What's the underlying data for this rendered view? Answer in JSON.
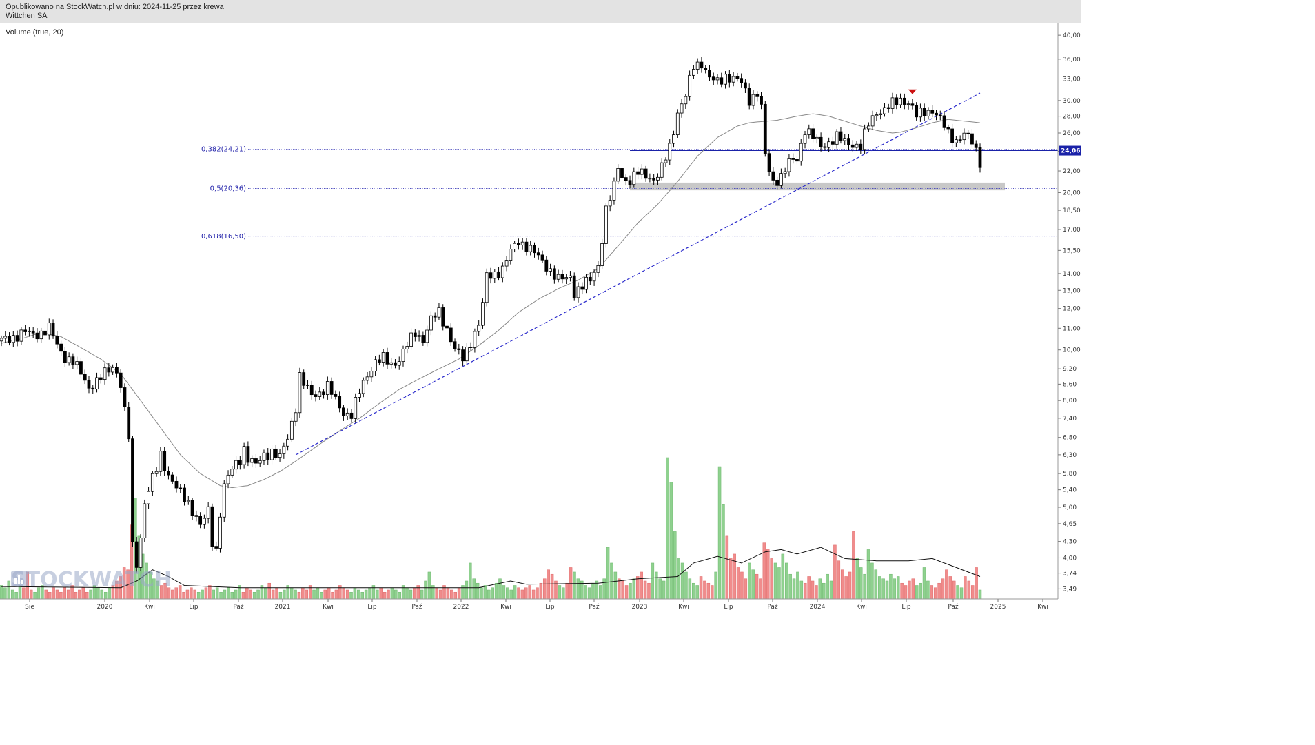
{
  "header": {
    "published": "Opublikowano na StockWatch.pl w dniu: 2024-11-25 przez krewa",
    "instrument": "Wittchen SA"
  },
  "indicator_label": "Volume (true, 20)",
  "watermark": "STOCKWATCH",
  "colors": {
    "up_volume": "#8fd18f",
    "down_volume": "#f08c8c",
    "fib_line": "#3a3ab8",
    "trendline": "#2c2ccc",
    "price_tag": "#1a22a8",
    "marker": "#cc1111",
    "support_zone": "#c8c8c8",
    "ma": "#888888"
  },
  "chart_data": {
    "type": "candlestick",
    "title": "Wittchen SA",
    "y_scale": "log",
    "ylim": [
      3.4,
      41.0
    ],
    "y_ticks": [
      "40,00",
      "36,00",
      "33,00",
      "30,00",
      "28,00",
      "26,00",
      "24,00",
      "22,00",
      "20,00",
      "18,50",
      "17,00",
      "15,50",
      "14,00",
      "13,00",
      "12,00",
      "11,00",
      "10,00",
      "9,20",
      "8,60",
      "8,00",
      "7,40",
      "6,80",
      "6,30",
      "5,80",
      "5,40",
      "5,00",
      "4,65",
      "4,30",
      "4,00",
      "3,74",
      "3,49"
    ],
    "x_ticks": [
      "Sie",
      "2020",
      "Kwi",
      "Lip",
      "Paź",
      "2021",
      "Kwi",
      "Lip",
      "Paź",
      "2022",
      "Kwi",
      "Lip",
      "Paź",
      "2023",
      "Kwi",
      "Lip",
      "Paź",
      "2024",
      "Kwi",
      "Lip",
      "Paź",
      "2025",
      "Kwi"
    ],
    "last_price": "24,06",
    "fibonacci_levels": [
      {
        "label": "0,382(24,21)",
        "value": 24.21
      },
      {
        "label": "0,5(20,36)",
        "value": 20.36
      },
      {
        "label": "0,618(16,50)",
        "value": 16.5
      }
    ],
    "support_zone": [
      20.2,
      20.9
    ],
    "price_path": [
      [
        0,
        10.4
      ],
      [
        3,
        10.6
      ],
      [
        6,
        10.8
      ],
      [
        8,
        10.7
      ],
      [
        10,
        10.8
      ],
      [
        12,
        11.0
      ],
      [
        13,
        10.6
      ],
      [
        14,
        10.2
      ],
      [
        16,
        9.7
      ],
      [
        18,
        9.5
      ],
      [
        20,
        9.0
      ],
      [
        22,
        8.5
      ],
      [
        24,
        8.7
      ],
      [
        26,
        9.0
      ],
      [
        28,
        9.3
      ],
      [
        29,
        9.1
      ],
      [
        30,
        8.6
      ],
      [
        31,
        7.6
      ],
      [
        32,
        6.8
      ],
      [
        33,
        4.2
      ],
      [
        34,
        3.9
      ],
      [
        35,
        4.4
      ],
      [
        36,
        5.1
      ],
      [
        37,
        5.4
      ],
      [
        39,
        5.9
      ],
      [
        40,
        6.3
      ],
      [
        41,
        6.0
      ],
      [
        43,
        5.6
      ],
      [
        45,
        5.3
      ],
      [
        47,
        5.1
      ],
      [
        49,
        4.8
      ],
      [
        50,
        4.6
      ],
      [
        52,
        4.9
      ],
      [
        53,
        4.3
      ],
      [
        54,
        4.15
      ],
      [
        55,
        4.9
      ],
      [
        56,
        5.5
      ],
      [
        58,
        5.9
      ],
      [
        60,
        6.2
      ],
      [
        61,
        6.5
      ],
      [
        62,
        6.2
      ],
      [
        64,
        6.0
      ],
      [
        66,
        6.3
      ],
      [
        68,
        6.4
      ],
      [
        70,
        6.2
      ],
      [
        72,
        6.8
      ],
      [
        74,
        7.8
      ],
      [
        75,
        8.9
      ],
      [
        76,
        8.6
      ],
      [
        78,
        8.2
      ],
      [
        80,
        8.3
      ],
      [
        82,
        8.5
      ],
      [
        84,
        8.0
      ],
      [
        86,
        7.6
      ],
      [
        88,
        7.5
      ],
      [
        90,
        8.3
      ],
      [
        92,
        9.0
      ],
      [
        94,
        9.5
      ],
      [
        96,
        9.6
      ],
      [
        98,
        9.4
      ],
      [
        100,
        9.6
      ],
      [
        102,
        10.2
      ],
      [
        104,
        10.8
      ],
      [
        106,
        10.5
      ],
      [
        108,
        11.4
      ],
      [
        110,
        11.8
      ],
      [
        112,
        11.0
      ],
      [
        114,
        10.0
      ],
      [
        116,
        9.6
      ],
      [
        118,
        10.4
      ],
      [
        120,
        11.2
      ],
      [
        121,
        12.2
      ],
      [
        122,
        13.8
      ],
      [
        124,
        14.0
      ],
      [
        126,
        14.3
      ],
      [
        128,
        15.4
      ],
      [
        130,
        16.2
      ],
      [
        132,
        15.8
      ],
      [
        134,
        15.3
      ],
      [
        136,
        14.8
      ],
      [
        138,
        14.2
      ],
      [
        140,
        13.6
      ],
      [
        142,
        13.7
      ],
      [
        143,
        13.9
      ],
      [
        144,
        12.9
      ],
      [
        146,
        13.2
      ],
      [
        148,
        13.6
      ],
      [
        150,
        14.6
      ],
      [
        151,
        16.3
      ],
      [
        152,
        18.5
      ],
      [
        154,
        20.5
      ],
      [
        155,
        22.5
      ],
      [
        156,
        21.5
      ],
      [
        158,
        21.0
      ],
      [
        160,
        21.8
      ],
      [
        162,
        21.7
      ],
      [
        164,
        21.2
      ],
      [
        165,
        21.5
      ],
      [
        166,
        22.2
      ],
      [
        168,
        24.5
      ],
      [
        170,
        28.5
      ],
      [
        172,
        30.5
      ],
      [
        174,
        35.0
      ],
      [
        176,
        35.5
      ],
      [
        178,
        33.0
      ],
      [
        180,
        32.5
      ],
      [
        182,
        33.5
      ],
      [
        184,
        33.0
      ],
      [
        186,
        32.4
      ],
      [
        188,
        30.2
      ],
      [
        190,
        31.0
      ],
      [
        191,
        29.0
      ],
      [
        192,
        23.5
      ],
      [
        193,
        22.0
      ],
      [
        194,
        21.0
      ],
      [
        196,
        21.5
      ],
      [
        198,
        22.8
      ],
      [
        200,
        23.2
      ],
      [
        202,
        26.5
      ],
      [
        204,
        25.5
      ],
      [
        206,
        24.5
      ],
      [
        208,
        25.0
      ],
      [
        210,
        25.5
      ],
      [
        212,
        25.0
      ],
      [
        214,
        24.8
      ],
      [
        216,
        24.5
      ],
      [
        218,
        27.0
      ],
      [
        220,
        28.6
      ],
      [
        222,
        28.8
      ],
      [
        224,
        29.5
      ],
      [
        226,
        30.2
      ],
      [
        228,
        29.8
      ],
      [
        230,
        28.0
      ],
      [
        232,
        28.6
      ],
      [
        234,
        28.8
      ],
      [
        236,
        27.5
      ],
      [
        238,
        26.0
      ],
      [
        240,
        25.2
      ],
      [
        242,
        25.8
      ],
      [
        244,
        25.0
      ],
      [
        245,
        24.1
      ],
      [
        246,
        23.0
      ]
    ],
    "moving_average_path": [
      [
        0,
        10.3
      ],
      [
        5,
        10.5
      ],
      [
        10,
        10.8
      ],
      [
        15,
        10.6
      ],
      [
        20,
        10.1
      ],
      [
        25,
        9.6
      ],
      [
        30,
        9.0
      ],
      [
        35,
        8.0
      ],
      [
        40,
        7.1
      ],
      [
        45,
        6.3
      ],
      [
        50,
        5.8
      ],
      [
        55,
        5.5
      ],
      [
        58,
        5.45
      ],
      [
        62,
        5.5
      ],
      [
        66,
        5.65
      ],
      [
        70,
        5.85
      ],
      [
        75,
        6.2
      ],
      [
        80,
        6.6
      ],
      [
        85,
        7.0
      ],
      [
        90,
        7.4
      ],
      [
        95,
        7.9
      ],
      [
        100,
        8.4
      ],
      [
        105,
        8.8
      ],
      [
        110,
        9.2
      ],
      [
        115,
        9.6
      ],
      [
        120,
        10.2
      ],
      [
        125,
        10.9
      ],
      [
        130,
        11.8
      ],
      [
        135,
        12.5
      ],
      [
        140,
        13.1
      ],
      [
        145,
        13.6
      ],
      [
        150,
        14.3
      ],
      [
        155,
        15.8
      ],
      [
        160,
        17.5
      ],
      [
        165,
        19.0
      ],
      [
        170,
        21.0
      ],
      [
        175,
        23.5
      ],
      [
        180,
        25.5
      ],
      [
        185,
        26.8
      ],
      [
        188,
        27.2
      ],
      [
        190,
        27.3
      ],
      [
        195,
        27.5
      ],
      [
        200,
        28.0
      ],
      [
        204,
        28.3
      ],
      [
        208,
        28.0
      ],
      [
        212,
        27.4
      ],
      [
        216,
        26.8
      ],
      [
        220,
        26.3
      ],
      [
        224,
        26.0
      ],
      [
        226,
        26.1
      ],
      [
        230,
        26.6
      ],
      [
        234,
        27.2
      ],
      [
        238,
        27.6
      ],
      [
        242,
        27.4
      ],
      [
        246,
        27.2
      ]
    ],
    "trendline": {
      "from": [
        74,
        6.3
      ],
      "to": [
        246,
        31.0
      ]
    },
    "volume": {
      "scale_max": 6.3,
      "bars": [
        0.6,
        0.5,
        0.8,
        0.4,
        0.3,
        0.6,
        0.5,
        1.2,
        0.4,
        0.3,
        0.5,
        0.6,
        0.4,
        0.3,
        0.5,
        0.4,
        0.3,
        0.5,
        0.4,
        0.6,
        0.3,
        0.4,
        0.5,
        0.3,
        0.4,
        0.6,
        0.5,
        0.4,
        0.3,
        0.5,
        0.6,
        0.8,
        1.0,
        1.4,
        1.3,
        3.3,
        4.5,
        2.8,
        2.0,
        1.6,
        1.2,
        0.9,
        0.8,
        0.6,
        0.7,
        0.5,
        0.4,
        0.5,
        0.6,
        0.3,
        0.4,
        0.5,
        0.4,
        0.3,
        0.4,
        0.5,
        0.6,
        0.4,
        0.5,
        0.3,
        0.4,
        0.5,
        0.3,
        0.4,
        0.6,
        0.3,
        0.5,
        0.4,
        0.3,
        0.4,
        0.6,
        0.5,
        0.7,
        0.4,
        0.5,
        0.3,
        0.4,
        0.6,
        0.5,
        0.4,
        0.3,
        0.5,
        0.4,
        0.6,
        0.4,
        0.5,
        0.3,
        0.4,
        0.5,
        0.3,
        0.4,
        0.6,
        0.5,
        0.4,
        0.3,
        0.5,
        0.4,
        0.3,
        0.4,
        0.5,
        0.6,
        0.4,
        0.5,
        0.3,
        0.4,
        0.5,
        0.4,
        0.3,
        0.6,
        0.5,
        0.4,
        0.5,
        0.6,
        0.4,
        0.8,
        1.2,
        0.6,
        0.5,
        0.4,
        0.6,
        0.5,
        0.4,
        0.3,
        0.5,
        0.6,
        0.8,
        1.6,
        0.9,
        0.7,
        0.5,
        0.6,
        0.4,
        0.5,
        0.7,
        0.9,
        0.6,
        0.5,
        0.4,
        0.6,
        0.5,
        0.4,
        0.5,
        0.6,
        0.4,
        0.5,
        0.7,
        0.9,
        1.3,
        1.1,
        0.8,
        0.6,
        0.5,
        0.7,
        1.4,
        1.2,
        0.9,
        0.8,
        0.6,
        0.5,
        0.7,
        0.8,
        0.6,
        0.9,
        2.3,
        1.6,
        1.2,
        0.9,
        0.8,
        0.6,
        0.7,
        0.9,
        1.0,
        1.2,
        0.8,
        0.7,
        1.6,
        1.2,
        0.9,
        0.8,
        6.3,
        5.2,
        3.0,
        1.8,
        1.6,
        1.2,
        0.9,
        0.7,
        0.6,
        1.0,
        0.8,
        0.7,
        0.6,
        1.2,
        5.9,
        4.2,
        2.8,
        1.8,
        2.0,
        1.4,
        1.2,
        0.9,
        1.6,
        1.3,
        1.1,
        0.9,
        2.5,
        2.2,
        1.8,
        1.6,
        1.4,
        2.0,
        1.6,
        1.1,
        0.9,
        1.2,
        0.8,
        0.7,
        1.0,
        0.8,
        0.6,
        0.9,
        0.7,
        1.1,
        0.8,
        2.4,
        1.7,
        1.3,
        1.0,
        1.2,
        3.0,
        1.8,
        1.4,
        1.1,
        2.2,
        1.6,
        1.3,
        1.0,
        0.9,
        0.8,
        1.1,
        0.9,
        1.0,
        0.7,
        0.6,
        0.8,
        0.9,
        0.6,
        0.7,
        1.4,
        0.8,
        0.6,
        0.5,
        0.7,
        0.9,
        1.3,
        1.0,
        0.8,
        0.6,
        0.5,
        1.0,
        0.8,
        0.6,
        1.4,
        0.4
      ],
      "ma_path": [
        [
          0,
          0.55
        ],
        [
          30,
          0.5
        ],
        [
          34,
          0.8
        ],
        [
          38,
          1.3
        ],
        [
          42,
          1.0
        ],
        [
          46,
          0.6
        ],
        [
          60,
          0.5
        ],
        [
          120,
          0.5
        ],
        [
          128,
          0.8
        ],
        [
          132,
          0.65
        ],
        [
          150,
          0.7
        ],
        [
          160,
          0.9
        ],
        [
          170,
          1.0
        ],
        [
          174,
          1.6
        ],
        [
          180,
          1.9
        ],
        [
          186,
          1.6
        ],
        [
          192,
          2.1
        ],
        [
          196,
          2.2
        ],
        [
          200,
          2.0
        ],
        [
          206,
          2.3
        ],
        [
          212,
          1.8
        ],
        [
          220,
          1.7
        ],
        [
          228,
          1.7
        ],
        [
          234,
          1.8
        ],
        [
          240,
          1.4
        ],
        [
          246,
          1.0
        ]
      ]
    }
  }
}
